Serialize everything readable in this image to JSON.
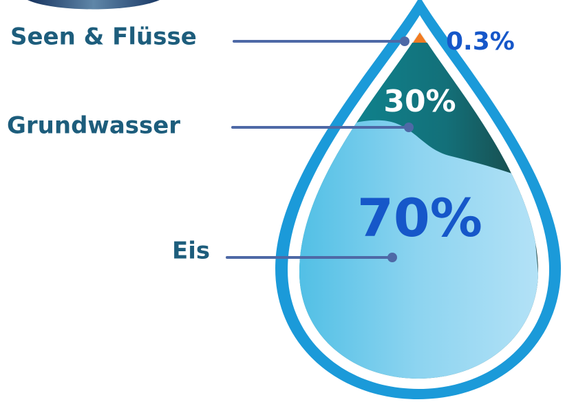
{
  "items": [
    {
      "label": "Seen & Flüsse",
      "value": "0.3%"
    },
    {
      "label": "Grundwasser",
      "value": "30%"
    },
    {
      "label": "Eis",
      "value": "70%"
    }
  ]
}
